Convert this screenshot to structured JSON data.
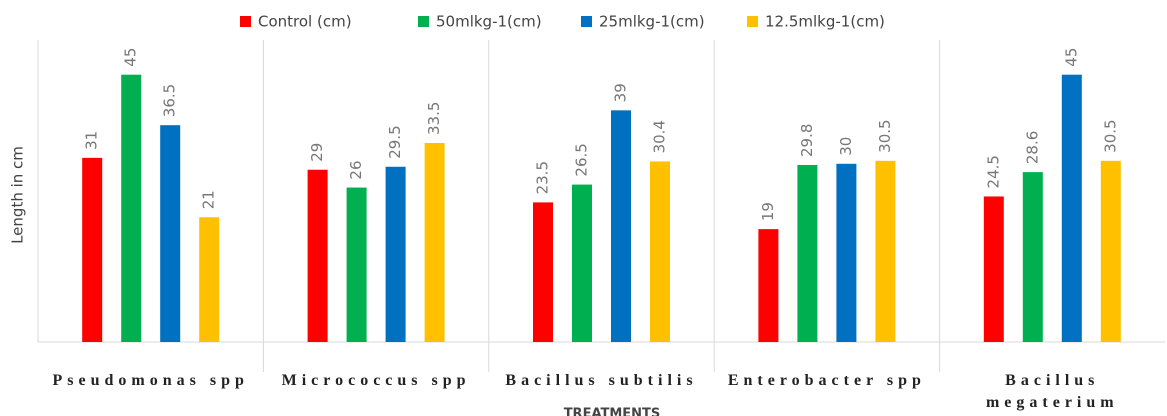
{
  "chart_data": {
    "type": "bar",
    "y_label": "Length in cm",
    "x_label": "TREATMENTS",
    "categories": [
      "Pseudomonas spp",
      "Micrococcus spp",
      "Bacillus subtilis",
      "Enterobacter spp",
      "Bacillus megaterium"
    ],
    "series": [
      {
        "name": "Control (cm)",
        "color": "#ff0000",
        "values": [
          31,
          29,
          23.5,
          19,
          24.5
        ]
      },
      {
        "name": "50mlkg-1(cm)",
        "color": "#00b050",
        "values": [
          45,
          26,
          26.5,
          29.8,
          28.6
        ]
      },
      {
        "name": "25mlkg-1(cm)",
        "color": "#0070c0",
        "values": [
          36.5,
          29.5,
          39,
          30,
          45
        ]
      },
      {
        "name": "12.5mlkg-1(cm)",
        "color": "#ffc000",
        "values": [
          21,
          33.5,
          30.4,
          30.5,
          30.5
        ]
      }
    ],
    "ylim": [
      0,
      50
    ],
    "legend": "top"
  }
}
